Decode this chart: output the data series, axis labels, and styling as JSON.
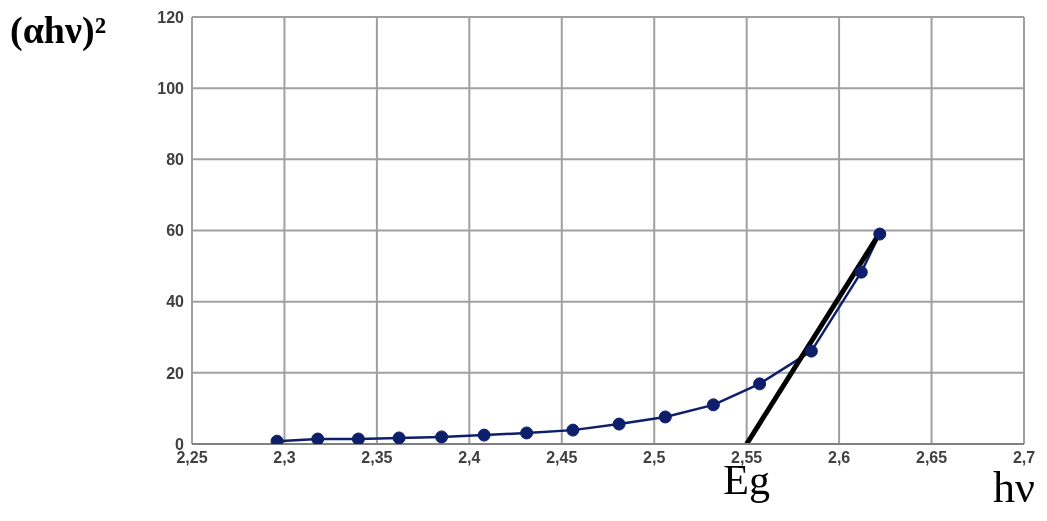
{
  "chart_data": {
    "type": "line",
    "xlabel": "hν",
    "ylabel": "(αhν)²",
    "xlim": [
      2.25,
      2.7
    ],
    "xticks": [
      {
        "value": 2.25,
        "label": "2,25"
      },
      {
        "value": 2.3,
        "label": "2,3"
      },
      {
        "value": 2.35,
        "label": "2,35"
      },
      {
        "value": 2.4,
        "label": "2,4"
      },
      {
        "value": 2.45,
        "label": "2,45"
      },
      {
        "value": 2.5,
        "label": "2,5"
      },
      {
        "value": 2.55,
        "label": "2,55"
      },
      {
        "value": 2.6,
        "label": "2,6"
      },
      {
        "value": 2.65,
        "label": "2,65"
      },
      {
        "value": 2.7,
        "label": "2,7"
      }
    ],
    "ylim": [
      0,
      120
    ],
    "yticks": [
      0,
      20,
      40,
      60,
      80,
      100,
      120
    ],
    "grid": true,
    "series": [
      {
        "color": "#0d1f6b",
        "marker": "circle",
        "x": [
          2.296,
          2.318,
          2.34,
          2.362,
          2.385,
          2.408,
          2.431,
          2.456,
          2.481,
          2.506,
          2.532,
          2.557,
          2.585,
          2.612,
          2.622
        ],
        "values": [
          0.8,
          1.4,
          1.4,
          1.7,
          2.0,
          2.5,
          3.1,
          3.9,
          5.6,
          7.6,
          11,
          16.9,
          26.1,
          48.3,
          59.0
        ]
      },
      {
        "type": "line",
        "color": "#000000",
        "marker": "none",
        "x": [
          2.55,
          2.621
        ],
        "values": [
          0,
          58.5
        ]
      }
    ],
    "annotations": [
      {
        "text": "Eg",
        "x": 2.55,
        "y": 0
      }
    ]
  }
}
